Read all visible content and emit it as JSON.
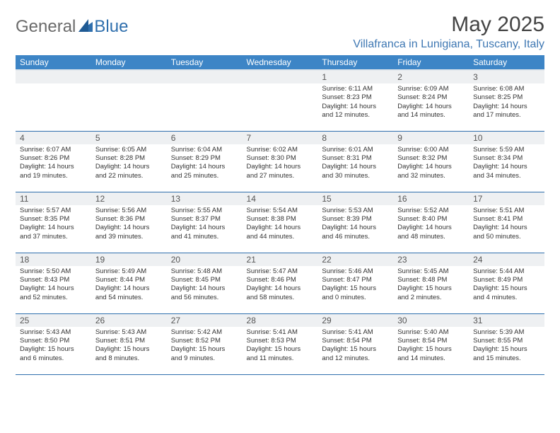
{
  "logo": {
    "text1": "General",
    "text2": "Blue"
  },
  "title": "May 2025",
  "location": "Villafranca in Lunigiana, Tuscany, Italy",
  "colors": {
    "header_bg": "#3d85c6",
    "header_text": "#ffffff",
    "border": "#2f6fad",
    "daynum_bg": "#eef0f2",
    "location_color": "#3f78b3",
    "logo_gray": "#6a6a6a",
    "body_text": "#333333",
    "background": "#ffffff"
  },
  "weekdays": [
    "Sunday",
    "Monday",
    "Tuesday",
    "Wednesday",
    "Thursday",
    "Friday",
    "Saturday"
  ],
  "weeks": [
    [
      {
        "n": "",
        "sr": "",
        "ss": "",
        "dl": ""
      },
      {
        "n": "",
        "sr": "",
        "ss": "",
        "dl": ""
      },
      {
        "n": "",
        "sr": "",
        "ss": "",
        "dl": ""
      },
      {
        "n": "",
        "sr": "",
        "ss": "",
        "dl": ""
      },
      {
        "n": "1",
        "sr": "Sunrise: 6:11 AM",
        "ss": "Sunset: 8:23 PM",
        "dl": "Daylight: 14 hours and 12 minutes."
      },
      {
        "n": "2",
        "sr": "Sunrise: 6:09 AM",
        "ss": "Sunset: 8:24 PM",
        "dl": "Daylight: 14 hours and 14 minutes."
      },
      {
        "n": "3",
        "sr": "Sunrise: 6:08 AM",
        "ss": "Sunset: 8:25 PM",
        "dl": "Daylight: 14 hours and 17 minutes."
      }
    ],
    [
      {
        "n": "4",
        "sr": "Sunrise: 6:07 AM",
        "ss": "Sunset: 8:26 PM",
        "dl": "Daylight: 14 hours and 19 minutes."
      },
      {
        "n": "5",
        "sr": "Sunrise: 6:05 AM",
        "ss": "Sunset: 8:28 PM",
        "dl": "Daylight: 14 hours and 22 minutes."
      },
      {
        "n": "6",
        "sr": "Sunrise: 6:04 AM",
        "ss": "Sunset: 8:29 PM",
        "dl": "Daylight: 14 hours and 25 minutes."
      },
      {
        "n": "7",
        "sr": "Sunrise: 6:02 AM",
        "ss": "Sunset: 8:30 PM",
        "dl": "Daylight: 14 hours and 27 minutes."
      },
      {
        "n": "8",
        "sr": "Sunrise: 6:01 AM",
        "ss": "Sunset: 8:31 PM",
        "dl": "Daylight: 14 hours and 30 minutes."
      },
      {
        "n": "9",
        "sr": "Sunrise: 6:00 AM",
        "ss": "Sunset: 8:32 PM",
        "dl": "Daylight: 14 hours and 32 minutes."
      },
      {
        "n": "10",
        "sr": "Sunrise: 5:59 AM",
        "ss": "Sunset: 8:34 PM",
        "dl": "Daylight: 14 hours and 34 minutes."
      }
    ],
    [
      {
        "n": "11",
        "sr": "Sunrise: 5:57 AM",
        "ss": "Sunset: 8:35 PM",
        "dl": "Daylight: 14 hours and 37 minutes."
      },
      {
        "n": "12",
        "sr": "Sunrise: 5:56 AM",
        "ss": "Sunset: 8:36 PM",
        "dl": "Daylight: 14 hours and 39 minutes."
      },
      {
        "n": "13",
        "sr": "Sunrise: 5:55 AM",
        "ss": "Sunset: 8:37 PM",
        "dl": "Daylight: 14 hours and 41 minutes."
      },
      {
        "n": "14",
        "sr": "Sunrise: 5:54 AM",
        "ss": "Sunset: 8:38 PM",
        "dl": "Daylight: 14 hours and 44 minutes."
      },
      {
        "n": "15",
        "sr": "Sunrise: 5:53 AM",
        "ss": "Sunset: 8:39 PM",
        "dl": "Daylight: 14 hours and 46 minutes."
      },
      {
        "n": "16",
        "sr": "Sunrise: 5:52 AM",
        "ss": "Sunset: 8:40 PM",
        "dl": "Daylight: 14 hours and 48 minutes."
      },
      {
        "n": "17",
        "sr": "Sunrise: 5:51 AM",
        "ss": "Sunset: 8:41 PM",
        "dl": "Daylight: 14 hours and 50 minutes."
      }
    ],
    [
      {
        "n": "18",
        "sr": "Sunrise: 5:50 AM",
        "ss": "Sunset: 8:43 PM",
        "dl": "Daylight: 14 hours and 52 minutes."
      },
      {
        "n": "19",
        "sr": "Sunrise: 5:49 AM",
        "ss": "Sunset: 8:44 PM",
        "dl": "Daylight: 14 hours and 54 minutes."
      },
      {
        "n": "20",
        "sr": "Sunrise: 5:48 AM",
        "ss": "Sunset: 8:45 PM",
        "dl": "Daylight: 14 hours and 56 minutes."
      },
      {
        "n": "21",
        "sr": "Sunrise: 5:47 AM",
        "ss": "Sunset: 8:46 PM",
        "dl": "Daylight: 14 hours and 58 minutes."
      },
      {
        "n": "22",
        "sr": "Sunrise: 5:46 AM",
        "ss": "Sunset: 8:47 PM",
        "dl": "Daylight: 15 hours and 0 minutes."
      },
      {
        "n": "23",
        "sr": "Sunrise: 5:45 AM",
        "ss": "Sunset: 8:48 PM",
        "dl": "Daylight: 15 hours and 2 minutes."
      },
      {
        "n": "24",
        "sr": "Sunrise: 5:44 AM",
        "ss": "Sunset: 8:49 PM",
        "dl": "Daylight: 15 hours and 4 minutes."
      }
    ],
    [
      {
        "n": "25",
        "sr": "Sunrise: 5:43 AM",
        "ss": "Sunset: 8:50 PM",
        "dl": "Daylight: 15 hours and 6 minutes."
      },
      {
        "n": "26",
        "sr": "Sunrise: 5:43 AM",
        "ss": "Sunset: 8:51 PM",
        "dl": "Daylight: 15 hours and 8 minutes."
      },
      {
        "n": "27",
        "sr": "Sunrise: 5:42 AM",
        "ss": "Sunset: 8:52 PM",
        "dl": "Daylight: 15 hours and 9 minutes."
      },
      {
        "n": "28",
        "sr": "Sunrise: 5:41 AM",
        "ss": "Sunset: 8:53 PM",
        "dl": "Daylight: 15 hours and 11 minutes."
      },
      {
        "n": "29",
        "sr": "Sunrise: 5:41 AM",
        "ss": "Sunset: 8:54 PM",
        "dl": "Daylight: 15 hours and 12 minutes."
      },
      {
        "n": "30",
        "sr": "Sunrise: 5:40 AM",
        "ss": "Sunset: 8:54 PM",
        "dl": "Daylight: 15 hours and 14 minutes."
      },
      {
        "n": "31",
        "sr": "Sunrise: 5:39 AM",
        "ss": "Sunset: 8:55 PM",
        "dl": "Daylight: 15 hours and 15 minutes."
      }
    ]
  ]
}
